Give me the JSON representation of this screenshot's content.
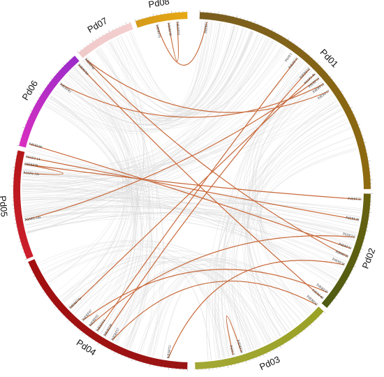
{
  "chromosomes": [
    {
      "name": "Pd01",
      "color_start": "#7a5e1f",
      "color_end": "#8f6a0e"
    },
    {
      "name": "Pd02",
      "color_start": "#69620f",
      "color_end": "#4e5b12"
    },
    {
      "name": "Pd03",
      "color_start": "#99a124",
      "color_end": "#a3a835"
    },
    {
      "name": "Pd04",
      "color_start": "#9a1414",
      "color_end": "#a30f10"
    },
    {
      "name": "Pd05",
      "color_start": "#cc1f2d",
      "color_end": "#b41719"
    },
    {
      "name": "Pd06",
      "color_start": "#d92fc0",
      "color_end": "#9b2bc9"
    },
    {
      "name": "Pd07",
      "color_start": "#f0c9c9",
      "color_end": "#f4cfcf"
    },
    {
      "name": "Pd08",
      "color_start": "#d49a1a",
      "color_end": "#e7a814"
    }
  ],
  "genes": [
    {
      "id": "g1",
      "label": "PdERF1"
    },
    {
      "id": "g2",
      "label": "PdAV1"
    },
    {
      "id": "g3",
      "label": "PdERF11"
    },
    {
      "id": "g4",
      "label": "PdERF12"
    },
    {
      "id": "g5",
      "label": "PdAP2-8a"
    },
    {
      "id": "g6",
      "label": "PdERF14"
    },
    {
      "id": "g7",
      "label": "PdERF13"
    },
    {
      "id": "g8",
      "label": "PdERF17"
    },
    {
      "id": "g9",
      "label": "PdERF23"
    },
    {
      "id": "g10",
      "label": "PdERF28"
    },
    {
      "id": "g11",
      "label": "PdAP2-6"
    },
    {
      "id": "g12",
      "label": "PdERF31"
    },
    {
      "id": "g13",
      "label": "PdERF35"
    },
    {
      "id": "g14",
      "label": "PdERF36"
    },
    {
      "id": "g15",
      "label": "PdERF39"
    },
    {
      "id": "g16",
      "label": "PdERF40"
    },
    {
      "id": "g17",
      "label": "PdERF42"
    },
    {
      "id": "g18",
      "label": "PdERF34"
    },
    {
      "id": "g19",
      "label": "PdAV3"
    },
    {
      "id": "g20",
      "label": "PdERF52"
    },
    {
      "id": "g21",
      "label": "PdERF57"
    },
    {
      "id": "g22",
      "label": "PdERF58"
    },
    {
      "id": "g23",
      "label": "PdERF64"
    },
    {
      "id": "g24",
      "label": "PdERF65"
    },
    {
      "id": "g25",
      "label": "PdERF67"
    },
    {
      "id": "g26",
      "label": "PdERF74a"
    },
    {
      "id": "g27",
      "label": "PdAP2-10a"
    },
    {
      "id": "g28",
      "label": "PdAP2-12a"
    },
    {
      "id": "g29",
      "label": "PdERF79"
    },
    {
      "id": "g30",
      "label": "PdAP2-14"
    },
    {
      "id": "g31",
      "label": "PdERF80"
    },
    {
      "id": "g32",
      "label": "PdERF81"
    },
    {
      "id": "g33",
      "label": "PdERF84"
    },
    {
      "id": "g34",
      "label": "PdERF86"
    },
    {
      "id": "g35",
      "label": "PdERF91"
    },
    {
      "id": "g36",
      "label": "PdERF98"
    },
    {
      "id": "g37",
      "label": "PdERF92"
    }
  ],
  "links": [
    [
      "g37",
      "g36"
    ],
    [
      "g34",
      "g8"
    ],
    [
      "g34",
      "g13"
    ],
    [
      "g33",
      "g16"
    ],
    [
      "g32",
      "g7"
    ],
    [
      "g31",
      "g12"
    ],
    [
      "g30",
      "g10"
    ],
    [
      "g29",
      "g9"
    ],
    [
      "g28",
      "g29"
    ],
    [
      "g27",
      "g6"
    ],
    [
      "g26",
      "g5"
    ],
    [
      "g25",
      "g15"
    ],
    [
      "g24",
      "g11"
    ],
    [
      "g23",
      "g3"
    ],
    [
      "g22",
      "g4"
    ],
    [
      "g21",
      "g17"
    ],
    [
      "g20",
      "g14"
    ],
    [
      "g19",
      "g18"
    ],
    [
      "g35",
      "g1"
    ]
  ],
  "colors": {
    "link": "#c8693a",
    "background_link": "#d9d9d9"
  }
}
